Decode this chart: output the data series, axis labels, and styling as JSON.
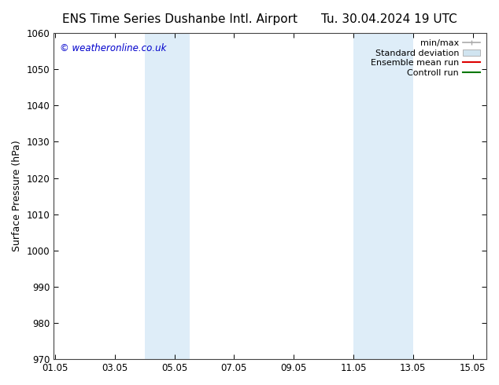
{
  "title_left": "ENS Time Series Dushanbe Intl. Airport",
  "title_right": "Tu. 30.04.2024 19 UTC",
  "ylabel": "Surface Pressure (hPa)",
  "watermark": "© weatheronline.co.uk",
  "watermark_color": "#0000cc",
  "xlim": [
    1.0,
    15.5
  ],
  "ylim": [
    970,
    1060
  ],
  "yticks": [
    970,
    980,
    990,
    1000,
    1010,
    1020,
    1030,
    1040,
    1050,
    1060
  ],
  "xticks": [
    1.05,
    3.05,
    5.05,
    7.05,
    9.05,
    11.05,
    13.05,
    15.05
  ],
  "xtick_labels": [
    "01.05",
    "03.05",
    "05.05",
    "07.05",
    "09.05",
    "11.05",
    "13.05",
    "15.05"
  ],
  "shaded_regions": [
    {
      "x_start": 4.05,
      "x_end": 5.55
    },
    {
      "x_start": 11.05,
      "x_end": 13.05
    }
  ],
  "shaded_color": "#deedf8",
  "background_color": "#ffffff",
  "legend_entries": [
    {
      "label": "min/max",
      "color": "#aaaaaa",
      "style": "minmax"
    },
    {
      "label": "Standard deviation",
      "color": "#d0e4f0",
      "style": "stddev"
    },
    {
      "label": "Ensemble mean run",
      "color": "#dd0000",
      "style": "line"
    },
    {
      "label": "Controll run",
      "color": "#007700",
      "style": "line"
    }
  ],
  "axis_color": "#444444",
  "title_fontsize": 11,
  "label_fontsize": 9,
  "tick_fontsize": 8.5,
  "legend_fontsize": 8
}
